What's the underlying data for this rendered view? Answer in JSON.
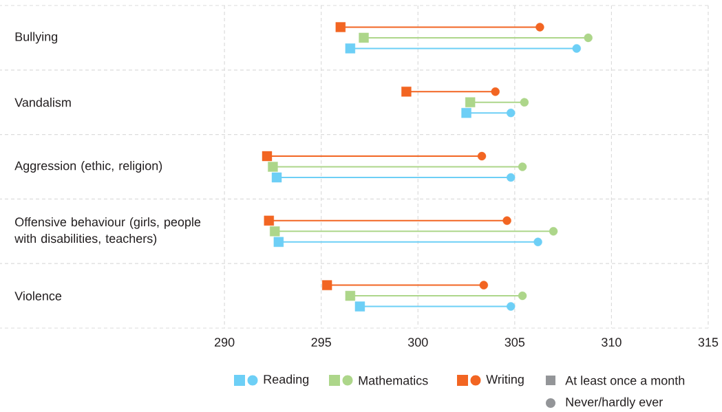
{
  "chart_data": {
    "type": "scatter",
    "orientation": "horizontal",
    "categories": [
      "Bullying",
      "Vandalism",
      "Aggression (ethic, religion)",
      "Offensive behaviour (girls, people with disabilities, teachers)",
      "Violence"
    ],
    "series": [
      {
        "name": "Reading",
        "color": "#6dcff6",
        "marker": "square",
        "values": [
          296.5,
          302.5,
          292.7,
          292.8,
          297.0
        ]
      },
      {
        "color": "#6dcff6",
        "marker": "circle",
        "values": [
          308.2,
          304.8,
          304.8,
          306.2,
          304.8
        ]
      },
      {
        "name": "Mathematics",
        "color": "#add68a",
        "marker": "square",
        "values": [
          297.2,
          302.7,
          292.5,
          292.6,
          296.5
        ]
      },
      {
        "color": "#add68a",
        "marker": "circle",
        "values": [
          308.8,
          305.5,
          305.4,
          307.0,
          305.4
        ]
      },
      {
        "name": "Writing",
        "color": "#f26522",
        "marker": "square",
        "values": [
          296.0,
          299.4,
          292.2,
          292.3,
          295.3
        ]
      },
      {
        "color": "#f26522",
        "marker": "circle",
        "values": [
          306.3,
          304.0,
          303.3,
          304.6,
          303.4
        ]
      }
    ],
    "xlim": [
      278.4,
      315
    ],
    "xticks": [
      290,
      295,
      300,
      305,
      310,
      315
    ],
    "grid": true,
    "legend": "bottom",
    "annotations": [
      "At least once a month",
      "Never/hardly ever"
    ]
  }
}
